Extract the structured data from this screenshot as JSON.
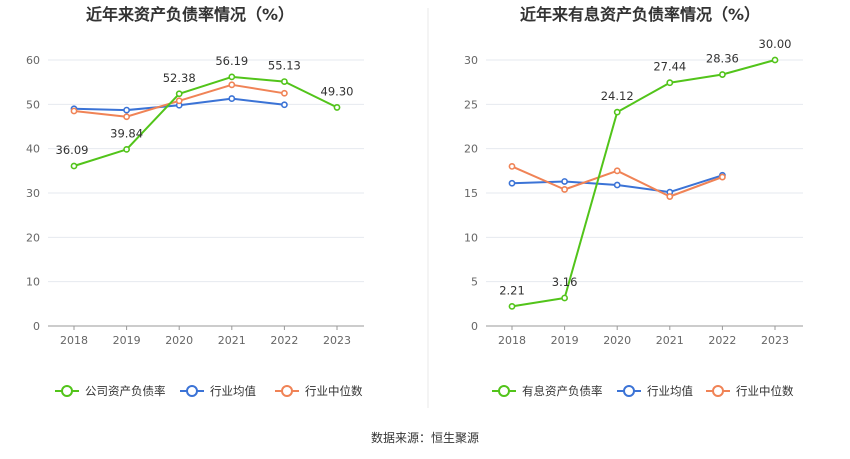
{
  "colors": {
    "company": "#52c41a",
    "avg": "#3b73d6",
    "median": "#f08356",
    "grid": "#e6e9ef",
    "axis": "#999999",
    "divider": "#e8e8e8"
  },
  "source_text": "数据来源：恒生聚源",
  "chart_data": [
    {
      "type": "line",
      "title": "近年来资产负债率情况（%）",
      "categories": [
        "2018",
        "2019",
        "2020",
        "2021",
        "2022",
        "2023"
      ],
      "ylim": [
        0,
        60
      ],
      "yticks": [
        0,
        10,
        20,
        30,
        40,
        50,
        60
      ],
      "series": [
        {
          "key": "company",
          "name": "公司资产负债率",
          "values": [
            36.09,
            39.84,
            52.38,
            56.19,
            55.13,
            49.3
          ],
          "labels": [
            "36.09",
            "39.84",
            "52.38",
            "56.19",
            "55.13",
            "49.30"
          ]
        },
        {
          "key": "avg",
          "name": "行业均值",
          "values": [
            49.0,
            48.7,
            49.8,
            51.3,
            49.9,
            null
          ]
        },
        {
          "key": "median",
          "name": "行业中位数",
          "values": [
            48.5,
            47.2,
            50.8,
            54.4,
            52.5,
            null
          ]
        }
      ]
    },
    {
      "type": "line",
      "title": "近年来有息资产负债率情况（%）",
      "categories": [
        "2018",
        "2019",
        "2020",
        "2021",
        "2022",
        "2023"
      ],
      "ylim": [
        0,
        30
      ],
      "yticks": [
        0,
        5,
        10,
        15,
        20,
        25,
        30
      ],
      "series": [
        {
          "key": "company",
          "name": "有息资产负债率",
          "values": [
            2.21,
            3.16,
            24.12,
            27.44,
            28.36,
            30.0
          ],
          "labels": [
            "2.21",
            "3.16",
            "24.12",
            "27.44",
            "28.36",
            "30.00"
          ]
        },
        {
          "key": "avg",
          "name": "行业均值",
          "values": [
            16.1,
            16.3,
            15.9,
            15.1,
            17.0,
            null
          ]
        },
        {
          "key": "median",
          "name": "行业中位数",
          "values": [
            18.0,
            15.4,
            17.5,
            14.6,
            16.8,
            null
          ]
        }
      ]
    }
  ]
}
